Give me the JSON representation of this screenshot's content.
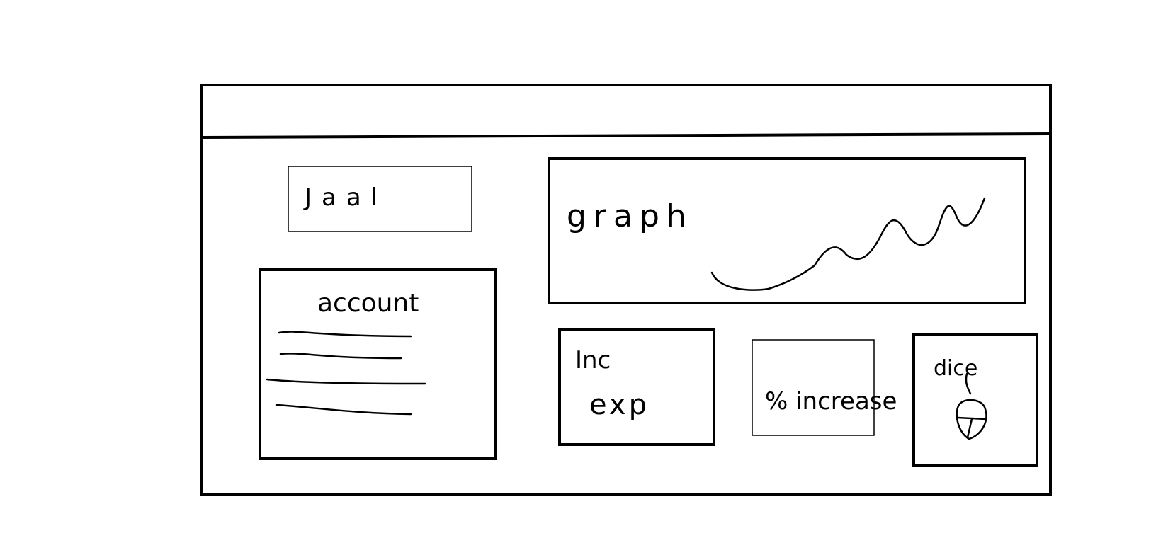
{
  "sketch": {
    "title_text": "Jaal",
    "account_panel": {
      "heading": "account"
    },
    "chart_panel": {
      "label": "graph"
    },
    "income_expense_card": {
      "line1": "Inc",
      "line2": "exp"
    },
    "percent_increase_card": {
      "label": "% increase"
    },
    "dice_card": {
      "label": "dice"
    }
  },
  "colors": {
    "stroke": "#000000",
    "background": "#ffffff"
  }
}
